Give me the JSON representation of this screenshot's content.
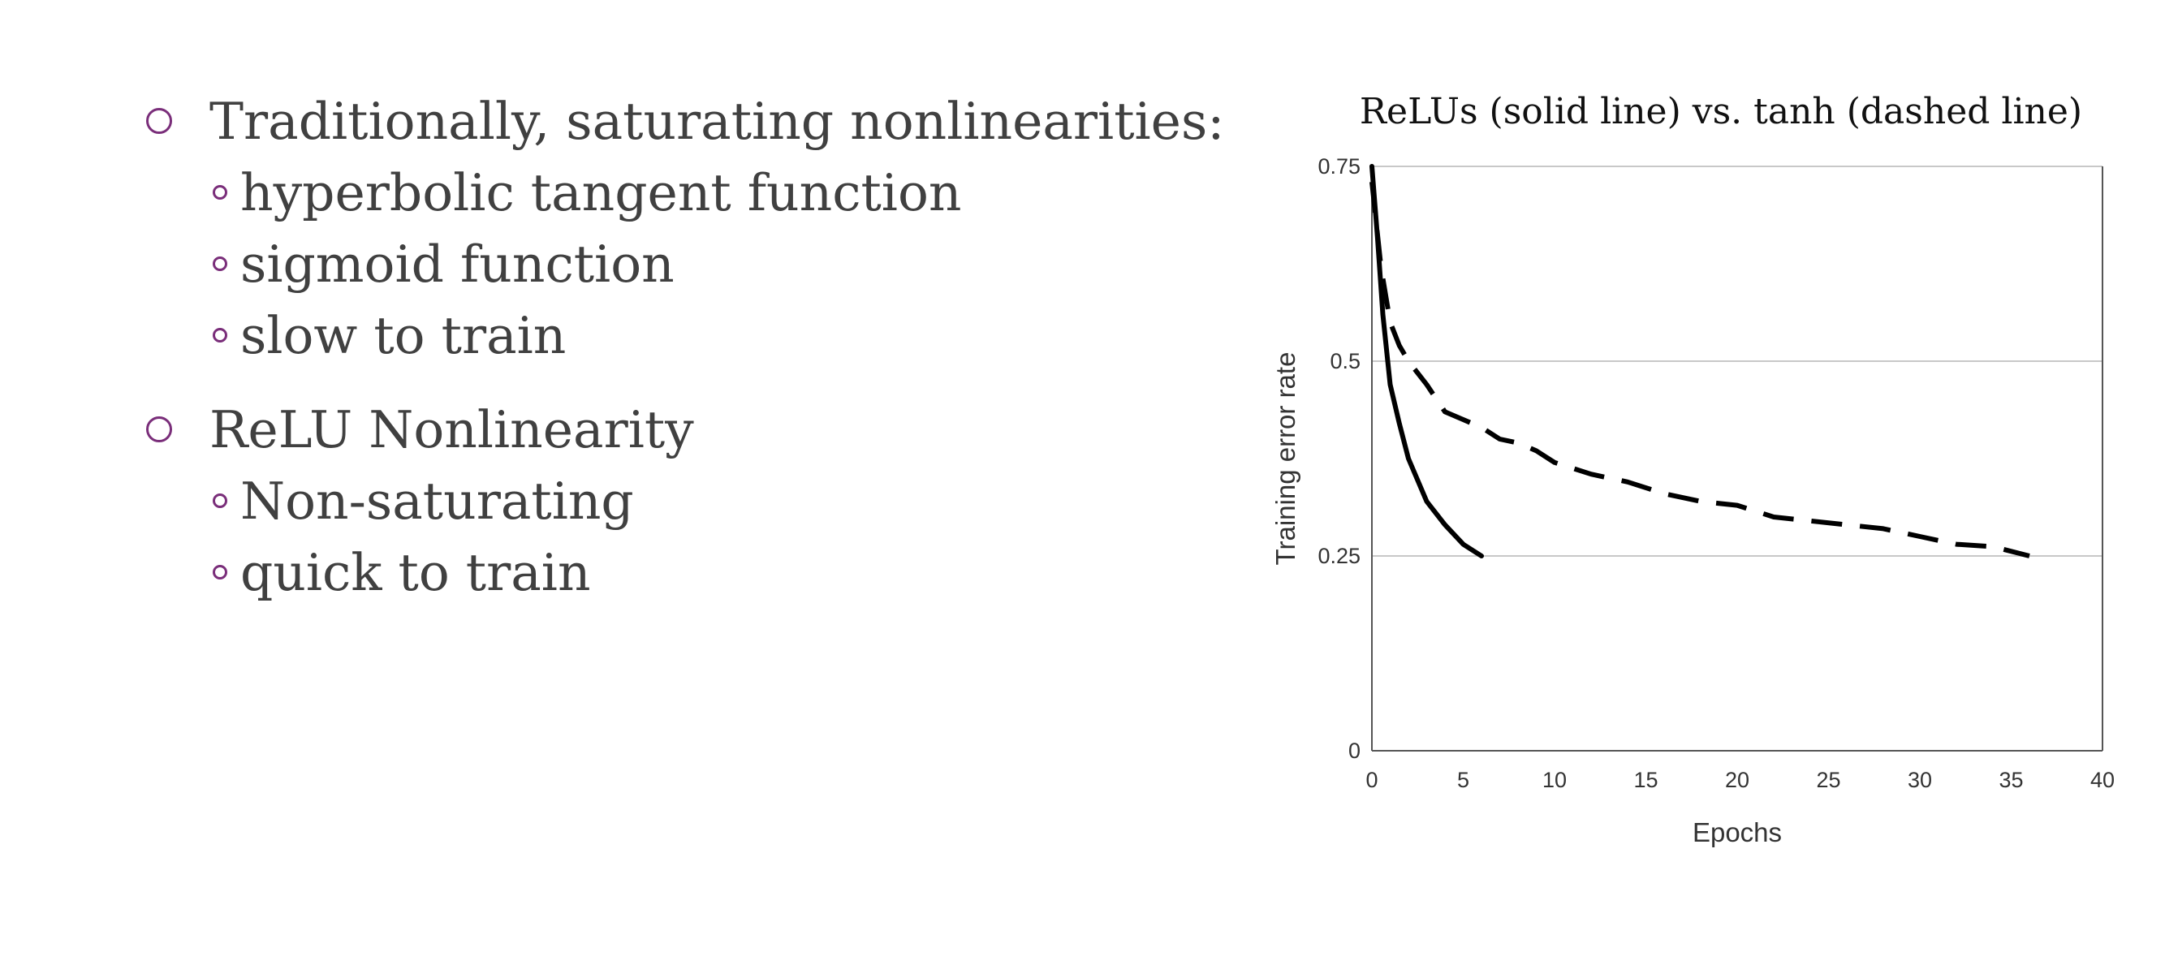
{
  "bullets": [
    {
      "text": "Traditionally, saturating nonlinearities:",
      "subitems": [
        "hyperbolic tangent function",
        "sigmoid function",
        "slow to train"
      ]
    },
    {
      "text": "ReLU Nonlinearity",
      "subitems": [
        "Non-saturating",
        "quick to train"
      ]
    }
  ],
  "colors": {
    "bullet_accent": "#7a2e7a",
    "text": "#404040"
  },
  "chart_data": {
    "type": "line",
    "title": "ReLUs (solid line) vs. tanh (dashed line)",
    "xlabel": "Epochs",
    "ylabel": "Training error rate",
    "xlim": [
      0,
      40
    ],
    "ylim": [
      0,
      0.75
    ],
    "xticks": [
      "0",
      "5",
      "10",
      "15",
      "20",
      "25",
      "30",
      "35",
      "40"
    ],
    "yticks": [
      "0",
      "0.25",
      "0.5",
      "0.75"
    ],
    "grid": "horizontal",
    "series": [
      {
        "style": "solid",
        "x": [
          0,
          0.3,
          0.6,
          1,
          1.5,
          2,
          3,
          4,
          5,
          6
        ],
        "y": [
          0.75,
          0.66,
          0.56,
          0.47,
          0.42,
          0.375,
          0.32,
          0.29,
          0.265,
          0.25
        ]
      },
      {
        "style": "dashed",
        "x": [
          0,
          0.5,
          1,
          1.5,
          2,
          3,
          4,
          5,
          6,
          7,
          8,
          9,
          10,
          12,
          14,
          16,
          18,
          20,
          22,
          24,
          26,
          28,
          30,
          32,
          34,
          36
        ],
        "y": [
          0.73,
          0.62,
          0.55,
          0.52,
          0.5,
          0.47,
          0.435,
          0.425,
          0.415,
          0.4,
          0.395,
          0.385,
          0.37,
          0.355,
          0.345,
          0.33,
          0.32,
          0.315,
          0.3,
          0.295,
          0.29,
          0.285,
          0.275,
          0.265,
          0.262,
          0.25
        ]
      }
    ]
  }
}
